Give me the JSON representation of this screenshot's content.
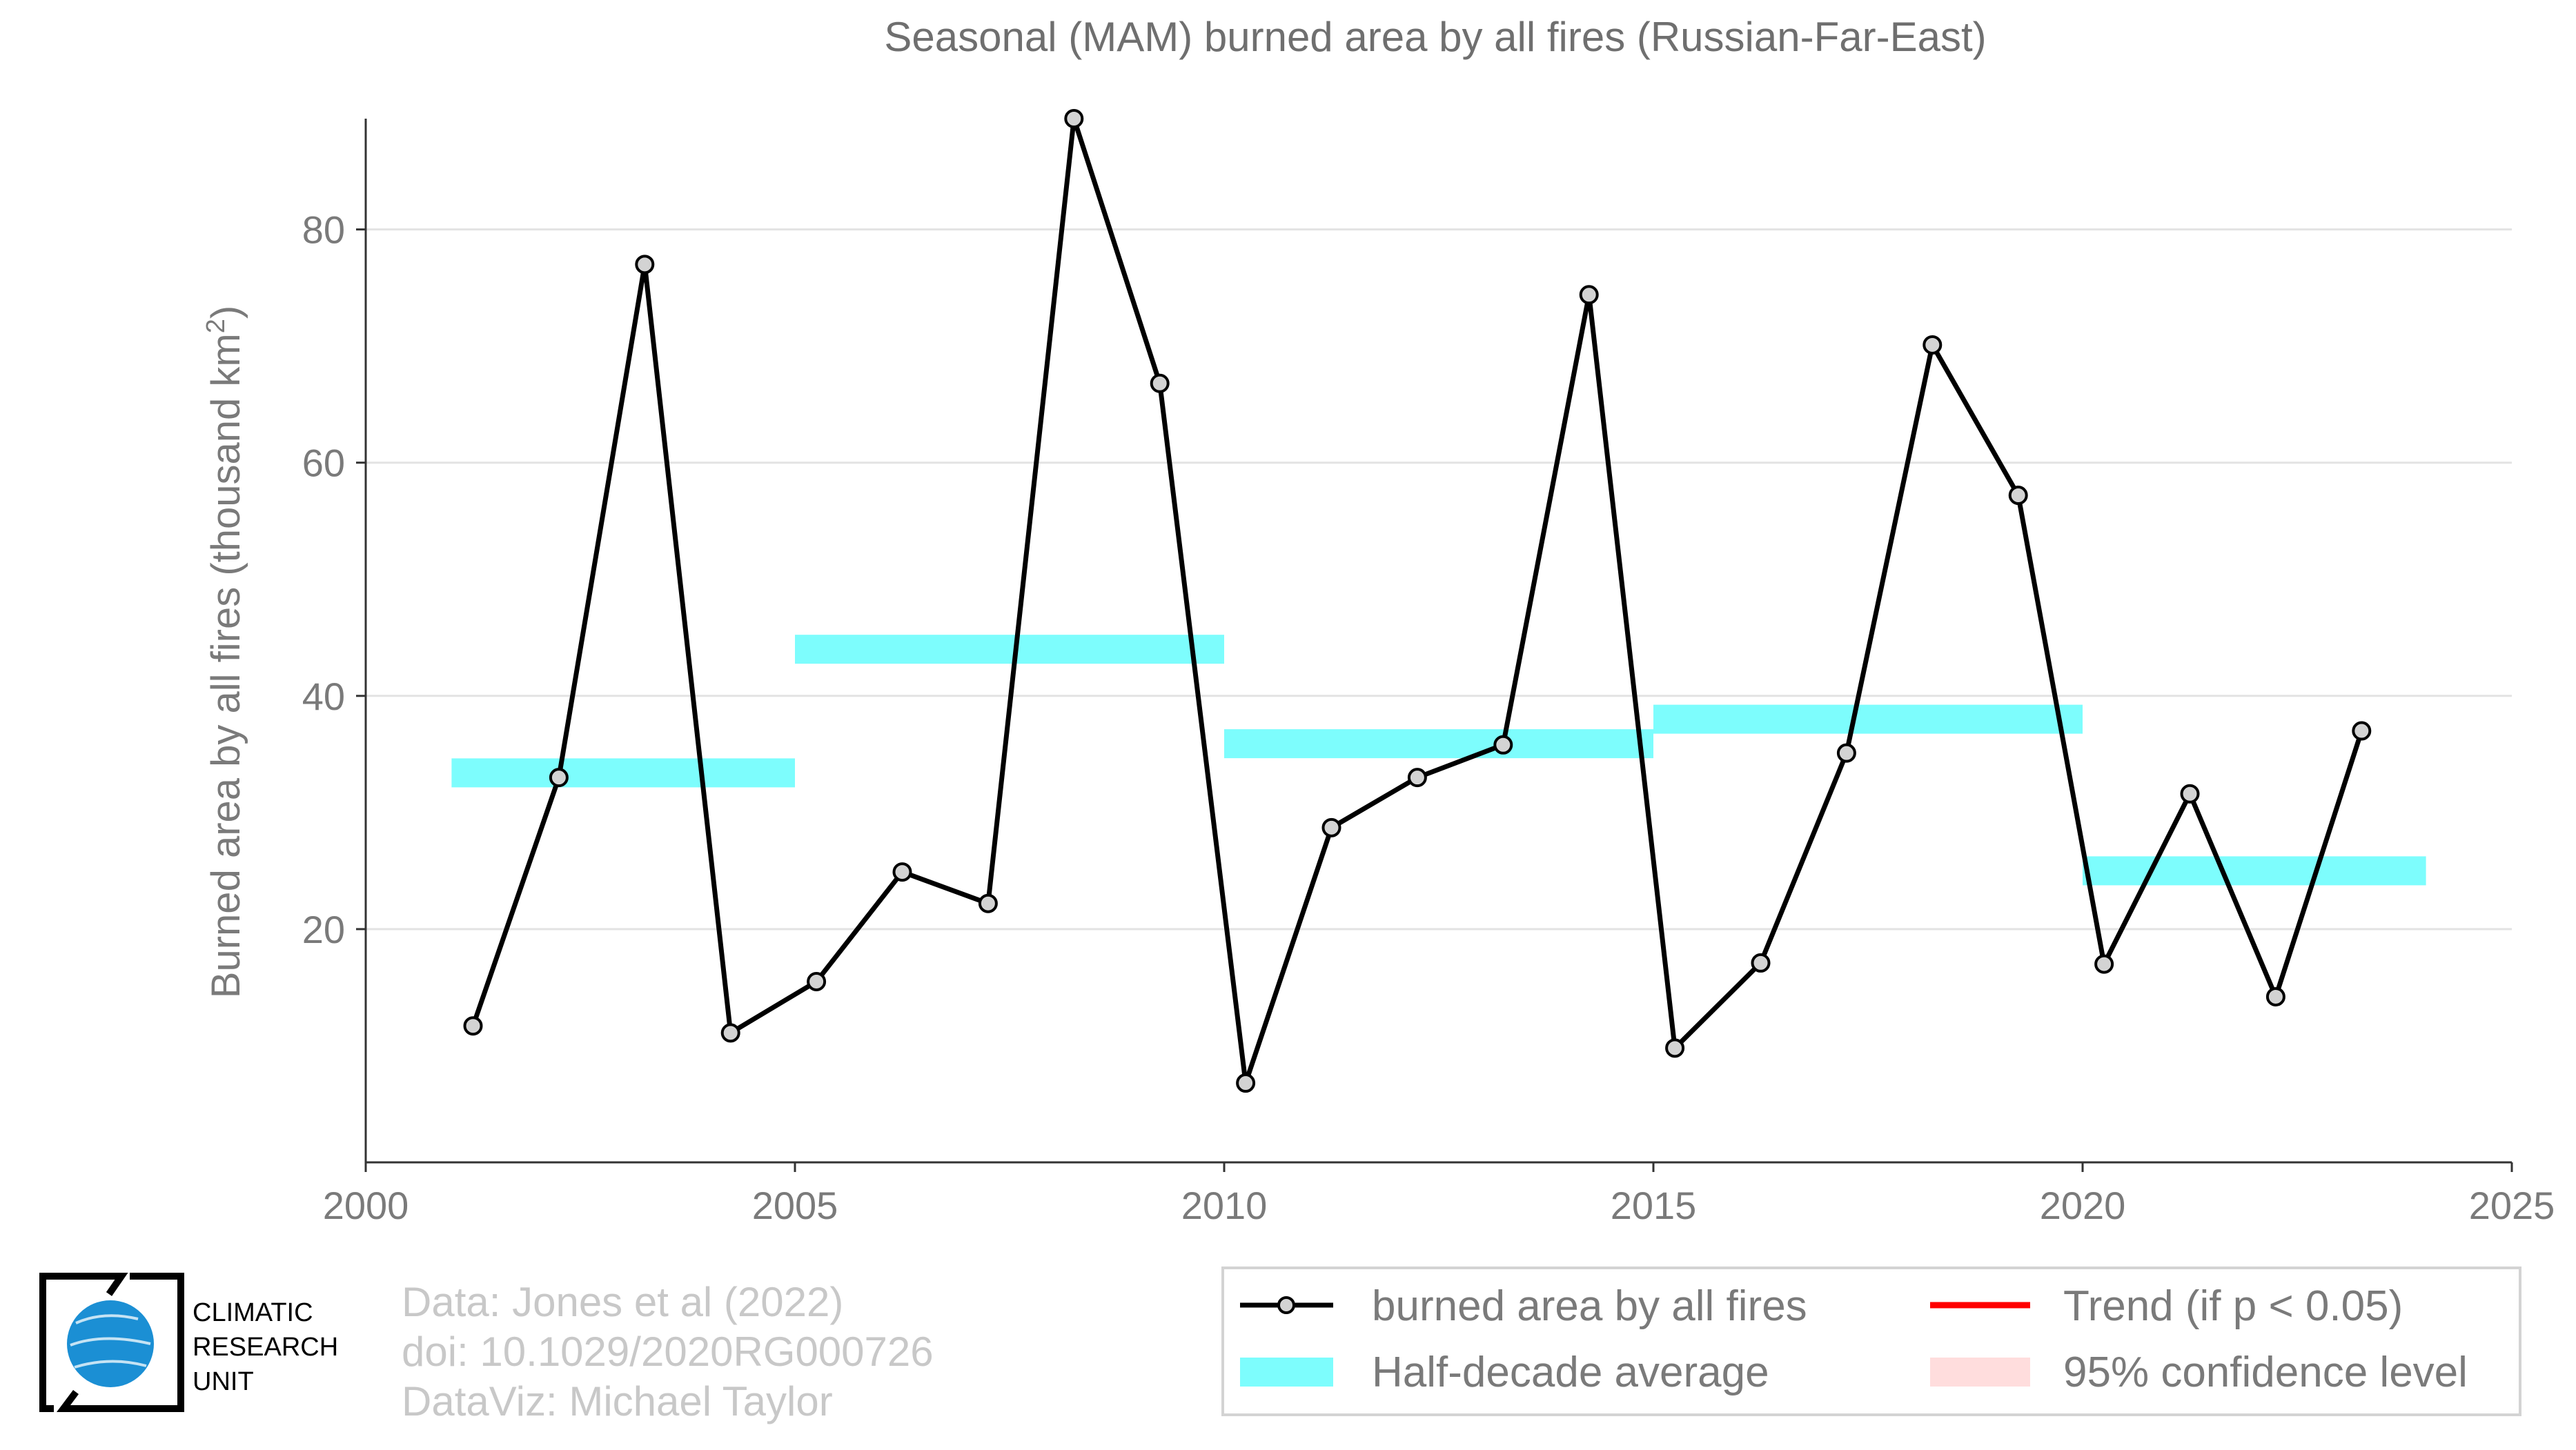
{
  "chart_data": {
    "type": "line",
    "title": "Seasonal (MAM) burned area by all fires (Russian-Far-East)",
    "ylabel_main": "Burned area by all fires (thousand km",
    "ylabel_sup": "2",
    "ylabel_close": ")",
    "xlabel": "",
    "xlim": [
      2000,
      2025
    ],
    "ylim": [
      0,
      89.5
    ],
    "xticks": [
      2000,
      2005,
      2010,
      2015,
      2020,
      2025
    ],
    "yticks": [
      20,
      40,
      60,
      80
    ],
    "grid": true,
    "legend_position": "bottom-right",
    "series": [
      {
        "name": "burned area by all fires",
        "color": "#000000",
        "x": [
          2001.25,
          2002.25,
          2003.25,
          2004.25,
          2005.25,
          2006.25,
          2007.25,
          2008.25,
          2009.25,
          2010.25,
          2011.25,
          2012.25,
          2013.25,
          2014.25,
          2015.25,
          2016.25,
          2017.25,
          2018.25,
          2019.25,
          2020.25,
          2021.25,
          2022.25,
          2023.25
        ],
        "values": [
          11.7,
          33.0,
          77.0,
          11.1,
          15.5,
          24.9,
          22.2,
          89.5,
          66.8,
          6.8,
          28.7,
          33.0,
          35.8,
          74.4,
          9.8,
          17.1,
          35.1,
          70.1,
          57.2,
          17.0,
          31.6,
          14.2,
          37.0
        ]
      }
    ],
    "half_decade_average": {
      "name": "Half-decade average",
      "color": "#7dfdfd",
      "segments": [
        {
          "x0": 2001,
          "x1": 2005,
          "value": 33.4
        },
        {
          "x0": 2005,
          "x1": 2010,
          "value": 44.0
        },
        {
          "x0": 2010,
          "x1": 2015,
          "value": 35.9
        },
        {
          "x0": 2015,
          "x1": 2020,
          "value": 38.0
        },
        {
          "x0": 2020,
          "x1": 2024,
          "value": 25.0
        }
      ]
    },
    "legend": {
      "series_label": "burned area by all fires",
      "average_label": "Half-decade average",
      "trend_label": "Trend (if p < 0.05)",
      "trend_color": "#ff0000",
      "confidence_label": "95% confidence level",
      "confidence_color": "#ffdddd"
    }
  },
  "credits": {
    "line1": "Data: Jones et al (2022)",
    "line2": "doi: 10.1029/2020RG000726",
    "line3": "DataViz: Michael Taylor"
  },
  "logo": {
    "line1": "CLIMATIC",
    "line2": "RESEARCH",
    "line3": "UNIT",
    "color": "#1b8fd4"
  }
}
